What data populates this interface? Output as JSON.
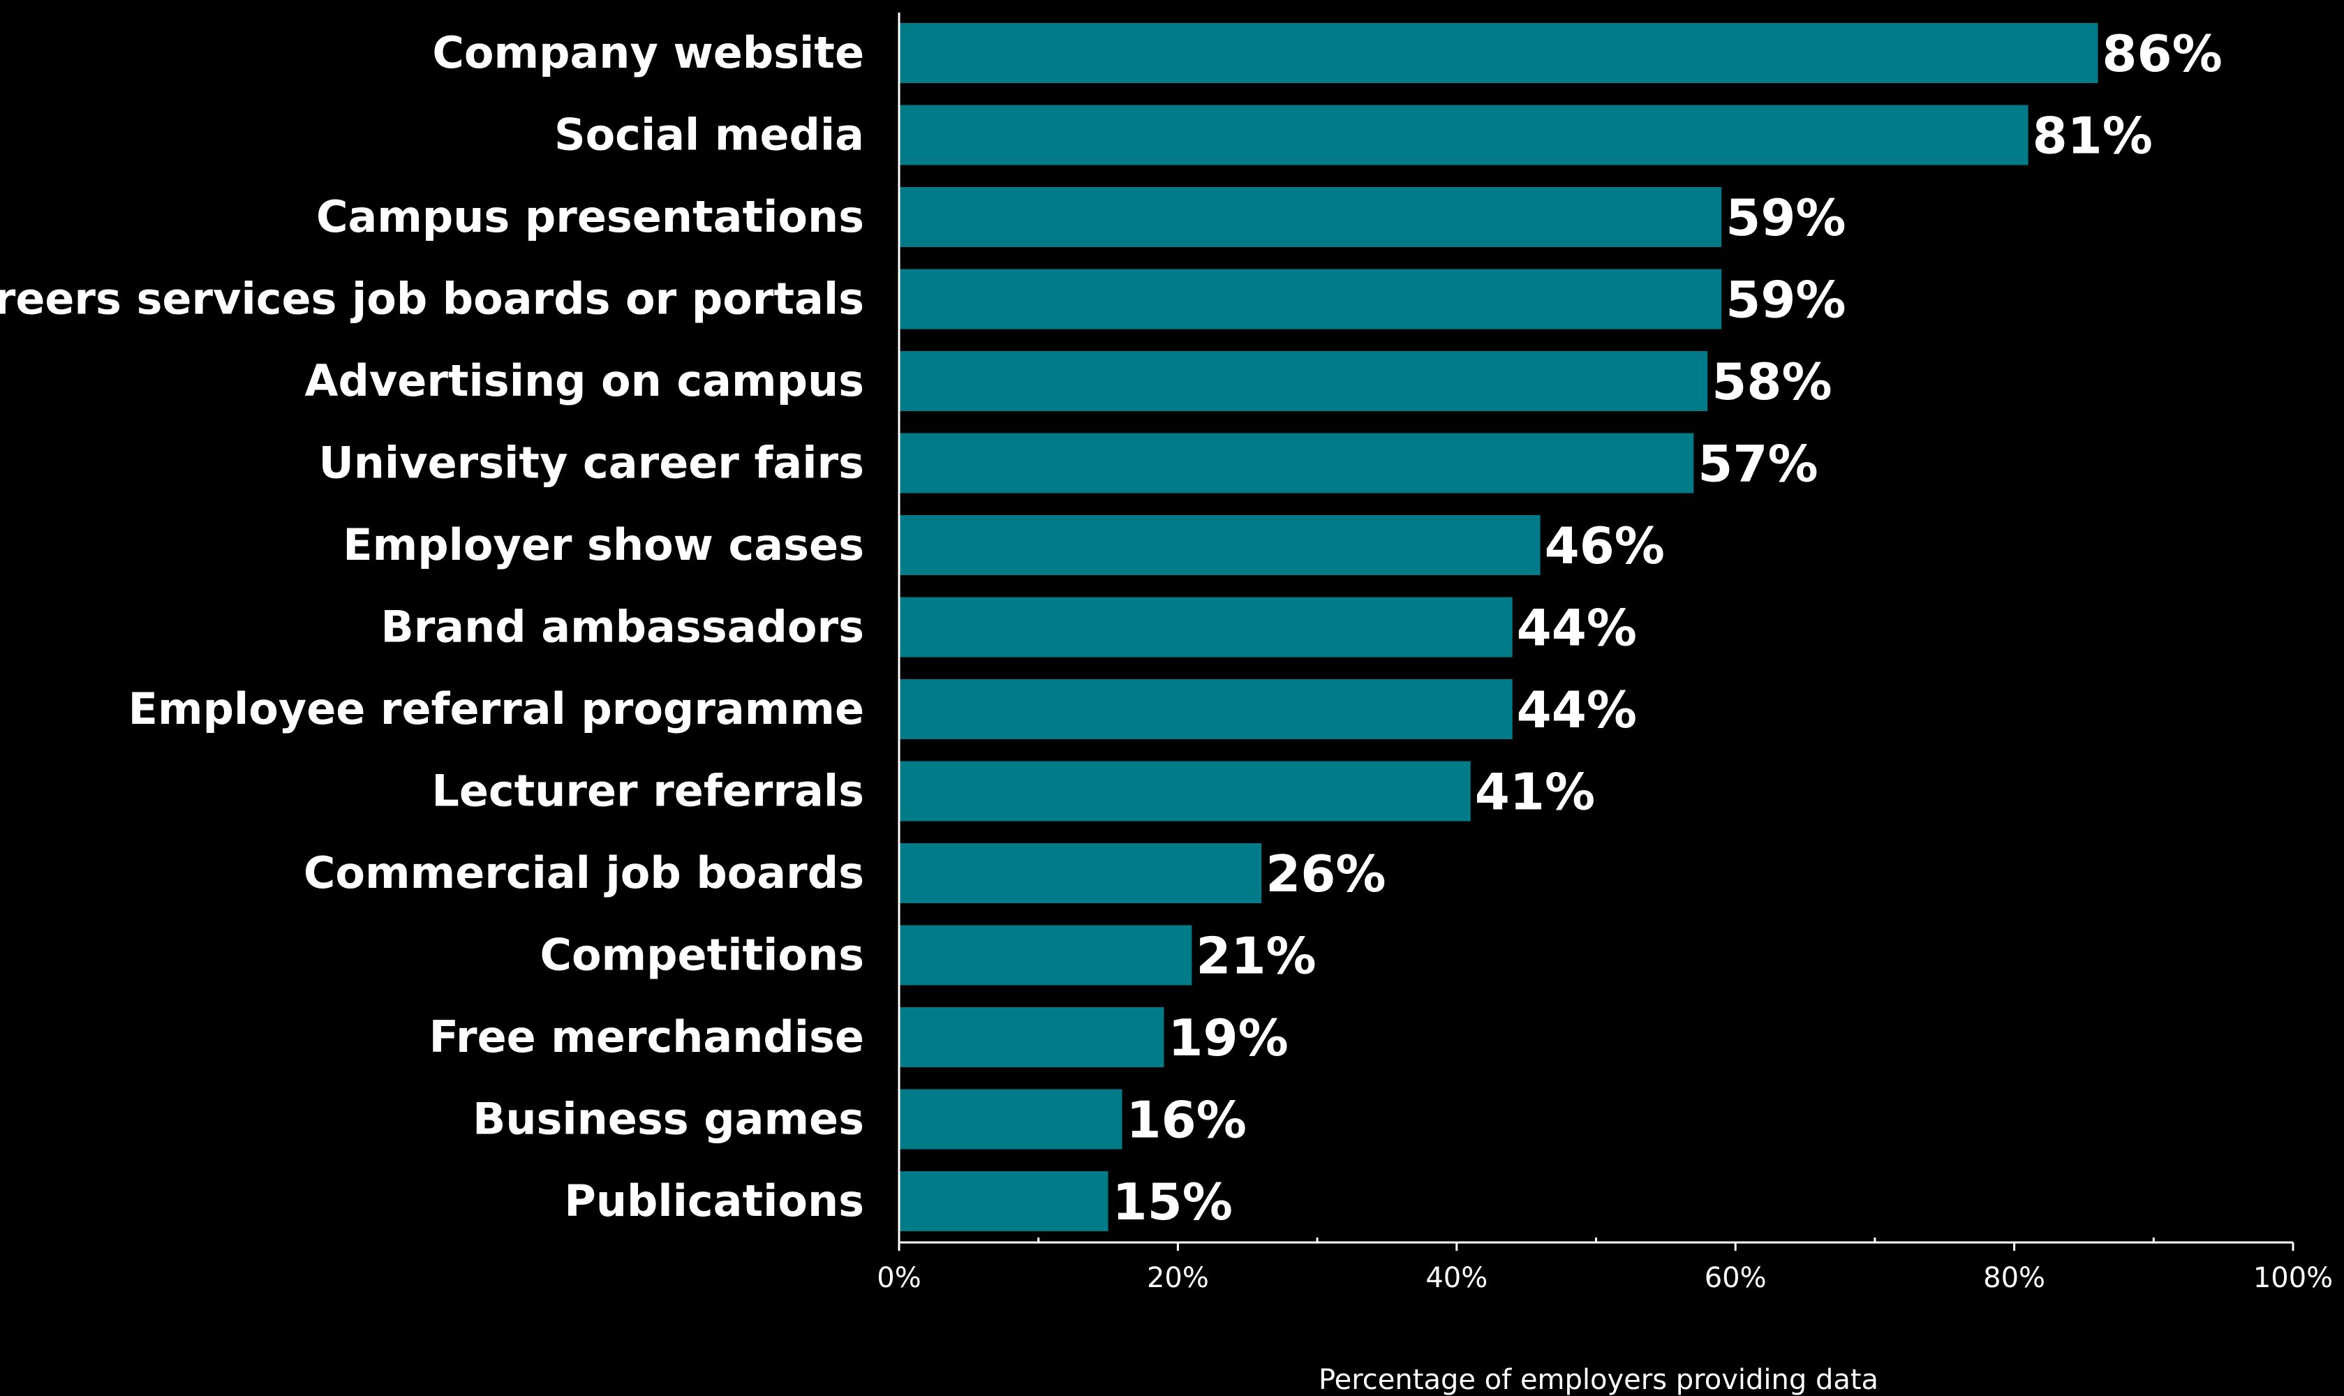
{
  "chart_data": {
    "type": "bar",
    "orientation": "horizontal",
    "categories": [
      "Company website",
      "Social media",
      "Campus presentations",
      "Careers services job boards or portals",
      "Advertising on campus",
      "University career fairs",
      "Employer show cases",
      "Brand ambassadors",
      "Employee referral programme",
      "Lecturer referrals",
      "Commercial job boards",
      "Competitions",
      "Free merchandise",
      "Business games",
      "Publications"
    ],
    "values": [
      86,
      81,
      59,
      59,
      58,
      57,
      46,
      44,
      44,
      41,
      26,
      21,
      19,
      16,
      15
    ],
    "value_labels": [
      "86%",
      "81%",
      "59%",
      "59%",
      "58%",
      "57%",
      "46%",
      "44%",
      "44%",
      "41%",
      "26%",
      "21%",
      "19%",
      "16%",
      "15%"
    ],
    "xlim": [
      0,
      100
    ],
    "x_ticks": [
      0,
      20,
      40,
      60,
      80,
      100
    ],
    "x_tick_labels": [
      "0%",
      "20%",
      "40%",
      "60%",
      "80%",
      "100%"
    ],
    "x_minor_ticks": [
      10,
      30,
      50,
      70,
      90
    ],
    "xlabel": "Percentage of employers providing data",
    "ylabel": "",
    "title": "",
    "grid": false,
    "legend": "none",
    "colors": {
      "background": "#000000",
      "bar": "#007B87",
      "text": "#FFFFFF",
      "axis": "#FFFFFF"
    }
  }
}
